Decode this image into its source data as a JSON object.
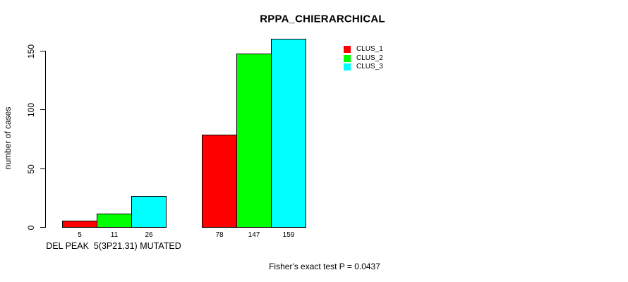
{
  "title": "RPPA_CHIERARCHICAL",
  "y_axis": {
    "label": "number of cases",
    "ticks": [
      0,
      50,
      100,
      150
    ]
  },
  "x_axis": {
    "group_labels": [
      "DEL PEAK  5(3P21.31) MUTATED",
      ""
    ]
  },
  "legend": {
    "items": [
      {
        "label": "CLUS_1",
        "color": "#ff0000"
      },
      {
        "label": "CLUS_2",
        "color": "#00ff00"
      },
      {
        "label": "CLUS_3",
        "color": "#00ffff"
      }
    ]
  },
  "footer": "Fisher's exact test P = 0.0437",
  "colors": {
    "bar_border": "#000000",
    "axis": "#000000",
    "background": "#ffffff"
  },
  "chart_data": {
    "type": "bar",
    "title": "RPPA_CHIERARCHICAL",
    "xlabel": "",
    "ylabel": "number of cases",
    "ylim": [
      0,
      160
    ],
    "yticks": [
      0,
      50,
      100,
      150
    ],
    "grid": false,
    "legend_position": "top-right",
    "categories": [
      "DEL PEAK  5(3P21.31) MUTATED",
      ""
    ],
    "series": [
      {
        "name": "CLUS_1",
        "color": "#ff0000",
        "values": [
          5,
          78
        ]
      },
      {
        "name": "CLUS_2",
        "color": "#00ff00",
        "values": [
          11,
          147
        ]
      },
      {
        "name": "CLUS_3",
        "color": "#00ffff",
        "values": [
          26,
          159
        ]
      }
    ],
    "bar_value_labels": [
      [
        5,
        11,
        26
      ],
      [
        78,
        147,
        159
      ]
    ],
    "annotation": "Fisher's exact test P = 0.0437"
  }
}
